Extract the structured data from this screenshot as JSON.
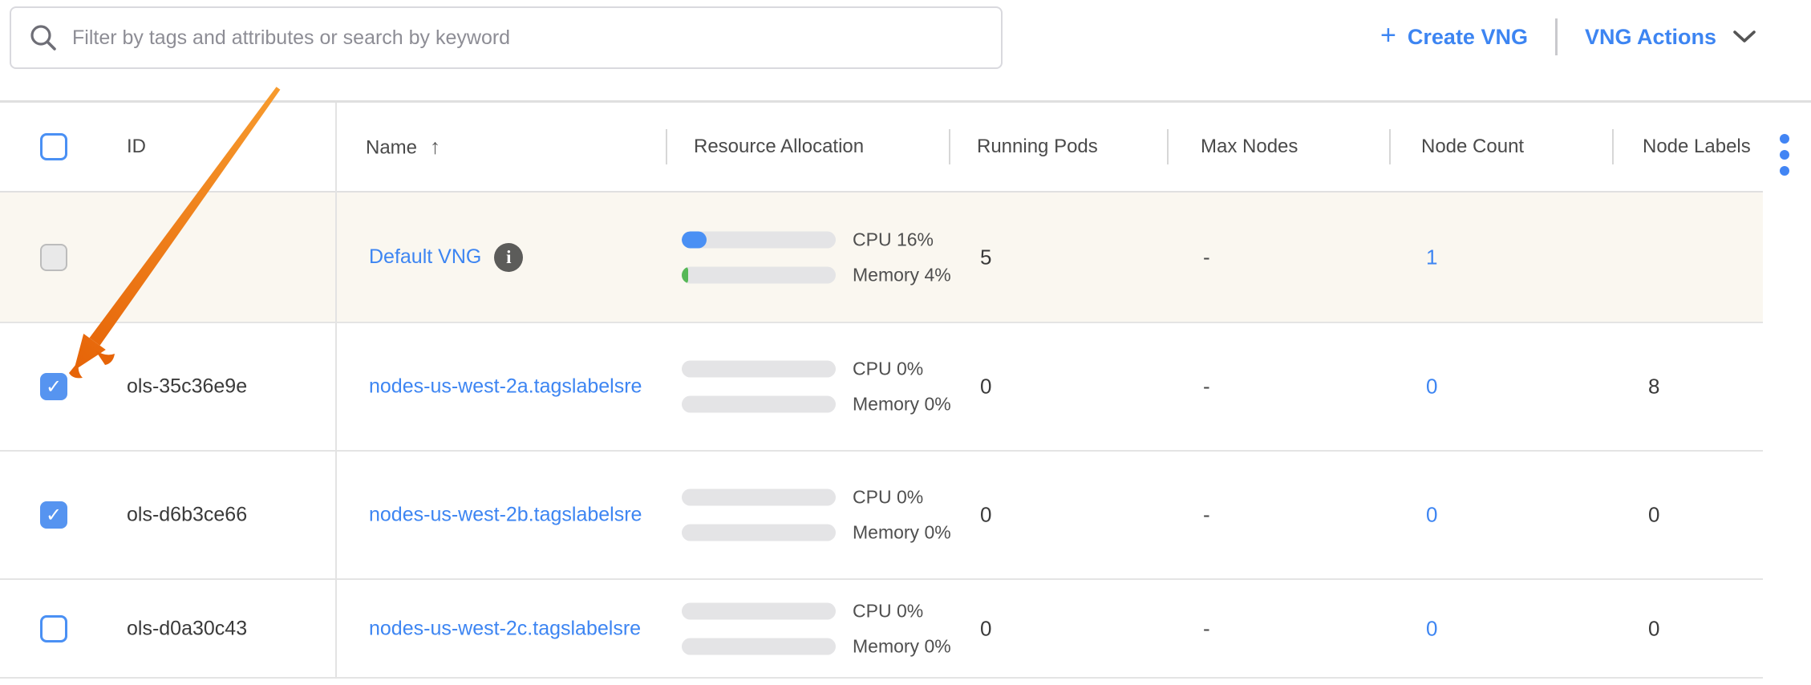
{
  "toolbar": {
    "search_placeholder": "Filter by tags and attributes or search by keyword",
    "create_vng_label": "Create VNG",
    "create_vng_plus": "+",
    "vng_actions_label": "VNG Actions"
  },
  "table": {
    "columns": {
      "id": "ID",
      "name": "Name",
      "resource_allocation": "Resource Allocation",
      "running_pods": "Running Pods",
      "max_nodes": "Max Nodes",
      "node_count": "Node Count",
      "node_labels": "Node Labels"
    },
    "sort": {
      "column": "Name",
      "direction": "asc",
      "icon": "↑"
    },
    "header_checkbox_state": "unchecked",
    "rows": [
      {
        "id": "",
        "name": "Default VNG",
        "info_icon": "i",
        "cpu_label": "CPU 16%",
        "cpu_pct": 16,
        "mem_label": "Memory 4%",
        "mem_pct": 4,
        "running_pods": "5",
        "max_nodes": "-",
        "node_count": "1",
        "node_labels": "",
        "checkbox_state": "disabled",
        "highlighted": true
      },
      {
        "id": "ols-35c36e9e",
        "name": "nodes-us-west-2a.tagslabelsre",
        "cpu_label": "CPU 0%",
        "cpu_pct": 0,
        "mem_label": "Memory 0%",
        "mem_pct": 0,
        "running_pods": "0",
        "max_nodes": "-",
        "node_count": "0",
        "node_labels": "8",
        "checkbox_state": "checked",
        "highlighted": false
      },
      {
        "id": "ols-d6b3ce66",
        "name": "nodes-us-west-2b.tagslabelsre",
        "cpu_label": "CPU 0%",
        "cpu_pct": 0,
        "mem_label": "Memory 0%",
        "mem_pct": 0,
        "running_pods": "0",
        "max_nodes": "-",
        "node_count": "0",
        "node_labels": "0",
        "checkbox_state": "checked",
        "highlighted": false
      },
      {
        "id": "ols-d0a30c43",
        "name": "nodes-us-west-2c.tagslabelsre",
        "cpu_label": "CPU 0%",
        "cpu_pct": 0,
        "mem_label": "Memory 0%",
        "mem_pct": 0,
        "running_pods": "0",
        "max_nodes": "-",
        "node_count": "0",
        "node_labels": "0",
        "checkbox_state": "unchecked",
        "highlighted": false
      }
    ]
  },
  "annotation": {
    "type": "arrow",
    "target": "row-2 checkbox",
    "color": "#ed7214"
  },
  "colors": {
    "accent_blue": "#3d85f2",
    "checkbox_blue": "#4a90f4",
    "cpu_bar": "#4a90f4",
    "memory_bar": "#56b857",
    "highlight_row_bg": "#faf7f0",
    "annotation_orange": "#ed7214",
    "kebab_blue": "#4285f4"
  }
}
